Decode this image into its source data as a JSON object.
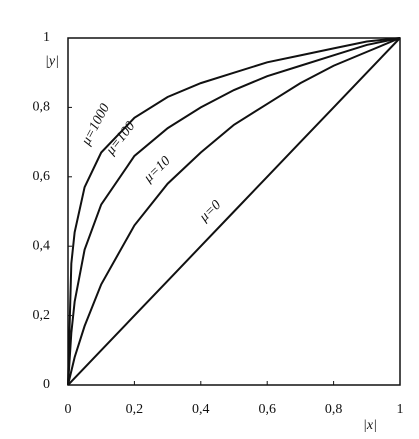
{
  "chart_data": {
    "type": "line",
    "xlabel": "|x|",
    "ylabel": "|y|",
    "x": [
      0,
      0.01,
      0.02,
      0.05,
      0.1,
      0.2,
      0.3,
      0.4,
      0.5,
      0.6,
      0.7,
      0.8,
      0.9,
      1
    ],
    "series": [
      {
        "name": "μ=1000",
        "color": "#111111",
        "values": [
          0,
          0.35,
          0.44,
          0.57,
          0.67,
          0.77,
          0.83,
          0.87,
          0.9,
          0.93,
          0.95,
          0.97,
          0.99,
          1
        ]
      },
      {
        "name": "μ=100",
        "color": "#111111",
        "values": [
          0,
          0.15,
          0.24,
          0.39,
          0.52,
          0.66,
          0.74,
          0.8,
          0.85,
          0.89,
          0.92,
          0.95,
          0.98,
          1
        ]
      },
      {
        "name": "μ=10",
        "color": "#111111",
        "values": [
          0,
          0.04,
          0.08,
          0.17,
          0.29,
          0.46,
          0.58,
          0.67,
          0.75,
          0.81,
          0.87,
          0.92,
          0.96,
          1
        ]
      },
      {
        "name": "μ=0",
        "color": "#111111",
        "values": [
          0,
          0.01,
          0.02,
          0.05,
          0.1,
          0.2,
          0.3,
          0.4,
          0.5,
          0.6,
          0.7,
          0.8,
          0.9,
          1
        ]
      }
    ],
    "xlim": [
      0,
      1
    ],
    "ylim": [
      0,
      1
    ],
    "xticks": [
      0,
      {
        "value": 0.2,
        "label": "0,2"
      },
      {
        "value": 0.4,
        "label": "0,4"
      },
      {
        "value": 0.6,
        "label": "0,6"
      },
      {
        "value": 0.8,
        "label": "0,8"
      },
      1
    ],
    "yticks": [
      0,
      {
        "value": 0.2,
        "label": "0,2"
      },
      {
        "value": 0.4,
        "label": "0,4"
      },
      {
        "value": 0.6,
        "label": "0,6"
      },
      {
        "value": 0.8,
        "label": "0,8"
      },
      1
    ],
    "grid": false
  }
}
